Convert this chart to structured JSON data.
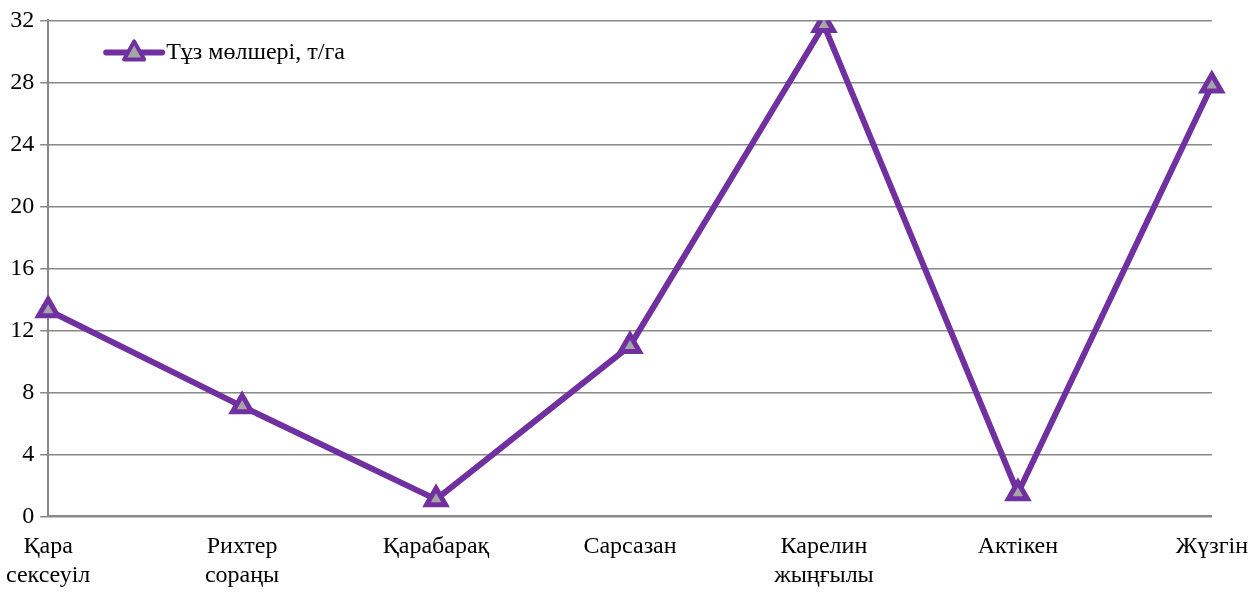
{
  "chart_data": {
    "type": "line",
    "categories": [
      "Қара сексеуіл",
      "Рихтер сораңы",
      "Қарабарақ",
      "Сарсазан",
      "Карелин жыңғылы",
      "Актікен",
      "Жүзгін"
    ],
    "series": [
      {
        "name": "Тұз мөлшері, т/га",
        "color": "#7030a0",
        "values": [
          13.3,
          7.1,
          1.1,
          11.0,
          31.7,
          1.5,
          27.8
        ]
      }
    ],
    "ylim": [
      0,
      32
    ],
    "yticks": [
      0,
      4,
      8,
      12,
      16,
      20,
      24,
      28,
      32
    ],
    "grid": "y",
    "legend": "top left",
    "marker": "triangle",
    "line_style": "solid"
  }
}
